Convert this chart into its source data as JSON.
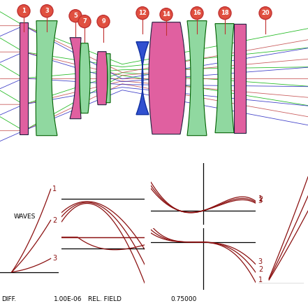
{
  "bg_color": "#ffffff",
  "pink": "#e060a0",
  "green": "#90d8a0",
  "blue": "#3050d0",
  "edge_dark": "#202040",
  "edge_green": "#006000",
  "ray_green": "#00b000",
  "ray_red": "#c04040",
  "ray_blue": "#2020c0",
  "circle_fill": "#e05040",
  "circle_edge": "#c03030",
  "curve_color": "#8b1010",
  "axis_color": "#000000",
  "bottom_labels": [
    "DIFF.",
    "1.00E-06",
    "REL. FIELD",
    "0.75000"
  ],
  "surface_nums": [
    "1",
    "3",
    "5",
    "7",
    "9",
    "12",
    "14",
    "16",
    "18",
    "20"
  ]
}
